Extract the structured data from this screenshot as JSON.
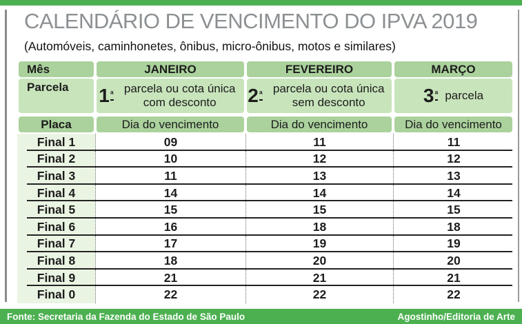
{
  "colors": {
    "accent_green": "#4cb050",
    "header_green": "#abd29d",
    "header_green_light": "#c8e4bb",
    "plate_column_tint": "#eaf4e3",
    "title_gray": "#8c9093"
  },
  "header": {
    "title": "CALENDÁRIO DE VENCIMENTO DO IPVA 2019",
    "subtitle": "(Automóveis, caminhonetes, ônibus, micro-ônibus, motos e similares)"
  },
  "table": {
    "mes_label": "Mês",
    "parcela_label": "Parcela",
    "placa_label": "Placa",
    "due_label": "Dia do vencimento",
    "months": [
      "JANEIRO",
      "FEVEREIRO",
      "MARÇO"
    ],
    "installments": [
      {
        "num": "1",
        "ord": "ª",
        "desc": "parcela ou cota única com desconto"
      },
      {
        "num": "2",
        "ord": "ª",
        "desc": "parcela ou cota única sem desconto"
      },
      {
        "num": "3",
        "ord": "ª",
        "desc": "parcela"
      }
    ],
    "rows": [
      {
        "final": "Final 1",
        "jan": "09",
        "fev": "11",
        "mar": "11"
      },
      {
        "final": "Final 2",
        "jan": "10",
        "fev": "12",
        "mar": "12"
      },
      {
        "final": "Final 3",
        "jan": "11",
        "fev": "13",
        "mar": "13"
      },
      {
        "final": "Final 4",
        "jan": "14",
        "fev": "14",
        "mar": "14"
      },
      {
        "final": "Final 5",
        "jan": "15",
        "fev": "15",
        "mar": "15"
      },
      {
        "final": "Final 6",
        "jan": "16",
        "fev": "18",
        "mar": "18"
      },
      {
        "final": "Final 7",
        "jan": "17",
        "fev": "19",
        "mar": "19"
      },
      {
        "final": "Final 8",
        "jan": "18",
        "fev": "20",
        "mar": "20"
      },
      {
        "final": "Final 9",
        "jan": "21",
        "fev": "21",
        "mar": "21"
      },
      {
        "final": "Final 0",
        "jan": "22",
        "fev": "22",
        "mar": "22"
      }
    ]
  },
  "footer": {
    "source": "Fonte: Secretaria da Fazenda do Estado de São Paulo",
    "credit": "Agostinho/Editoria de Arte"
  },
  "chart_data": {
    "type": "table",
    "title": "CALENDÁRIO DE VENCIMENTO DO IPVA 2019",
    "subtitle": "(Automóveis, caminhonetes, ônibus, micro-ônibus, motos e similares)",
    "columns": [
      "Placa",
      "JANEIRO - 1ª parcela ou cota única com desconto (Dia do vencimento)",
      "FEVEREIRO - 2ª parcela ou cota única sem desconto (Dia do vencimento)",
      "MARÇO - 3ª parcela (Dia do vencimento)"
    ],
    "rows": [
      [
        "Final 1",
        9,
        11,
        11
      ],
      [
        "Final 2",
        10,
        12,
        12
      ],
      [
        "Final 3",
        11,
        13,
        13
      ],
      [
        "Final 4",
        14,
        14,
        14
      ],
      [
        "Final 5",
        15,
        15,
        15
      ],
      [
        "Final 6",
        16,
        18,
        18
      ],
      [
        "Final 7",
        17,
        19,
        19
      ],
      [
        "Final 8",
        18,
        20,
        20
      ],
      [
        "Final 9",
        21,
        21,
        21
      ],
      [
        "Final 0",
        22,
        22,
        22
      ]
    ],
    "source": "Fonte: Secretaria da Fazenda do Estado de São Paulo",
    "credit": "Agostinho/Editoria de Arte"
  }
}
